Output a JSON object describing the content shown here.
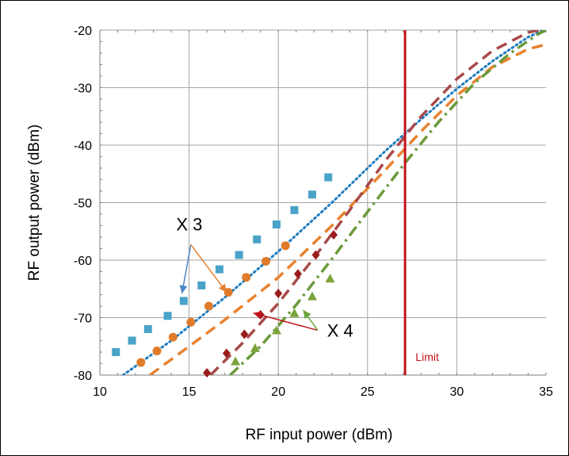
{
  "chart_data": {
    "type": "scatter",
    "title": "",
    "xlabel": "RF input power (dBm)",
    "ylabel": "RF output power (dBm)",
    "xlim": [
      10,
      35
    ],
    "ylim": [
      -80,
      -20
    ],
    "xticks": [
      "10",
      "15",
      "20",
      "25",
      "30",
      "35"
    ],
    "yticks": [
      "-20",
      "-30",
      "-40",
      "-50",
      "-60",
      "-70",
      "-80"
    ],
    "grid": true,
    "legend": "none",
    "series": [
      {
        "color": "#4aa3c8",
        "marker": "square",
        "points": [
          [
            10.9,
            -76
          ],
          [
            11.8,
            -74
          ],
          [
            12.7,
            -72
          ],
          [
            13.8,
            -69.7
          ],
          [
            14.7,
            -67.1
          ],
          [
            15.7,
            -64.4
          ],
          [
            16.7,
            -61.6
          ],
          [
            17.8,
            -59.1
          ],
          [
            18.8,
            -56.4
          ],
          [
            19.9,
            -53.8
          ],
          [
            20.9,
            -51.3
          ],
          [
            21.9,
            -48.6
          ],
          [
            22.8,
            -45.6
          ]
        ]
      },
      {
        "color": "#e07b2a",
        "marker": "circle",
        "points": [
          [
            12.3,
            -77.8
          ],
          [
            13.2,
            -75.8
          ],
          [
            14.1,
            -73.4
          ],
          [
            15.1,
            -70.8
          ],
          [
            16.1,
            -68
          ],
          [
            17.2,
            -65.6
          ],
          [
            18.2,
            -63
          ],
          [
            19.3,
            -60.2
          ],
          [
            20.4,
            -57.5
          ]
        ]
      },
      {
        "color": "#9b1c1c",
        "marker": "diamond",
        "points": [
          [
            16,
            -79.6
          ],
          [
            17.1,
            -76.2
          ],
          [
            18.1,
            -72.9
          ],
          [
            19,
            -69.5
          ],
          [
            20,
            -65.8
          ],
          [
            21.1,
            -62.4
          ],
          [
            22.1,
            -59.1
          ],
          [
            23.1,
            -55.6
          ]
        ]
      },
      {
        "color": "#7ba33a",
        "marker": "triangle",
        "points": [
          [
            17.6,
            -77.6
          ],
          [
            18.7,
            -75.3
          ],
          [
            19.9,
            -72.2
          ],
          [
            20.9,
            -69.2
          ],
          [
            21.9,
            -66.3
          ],
          [
            22.9,
            -63.2
          ]
        ]
      }
    ],
    "curves": [
      {
        "color": "#1f7bbf",
        "style": "dotted",
        "points": [
          [
            11.3,
            -80
          ],
          [
            14,
            -74
          ],
          [
            17,
            -66.5
          ],
          [
            20,
            -58.5
          ],
          [
            23,
            -50
          ],
          [
            26,
            -41
          ],
          [
            28,
            -35.5
          ],
          [
            30,
            -30.2
          ],
          [
            32,
            -25.4
          ],
          [
            34,
            -21.2
          ],
          [
            34.9,
            -20
          ]
        ]
      },
      {
        "color": "#e8822f",
        "style": "dashed",
        "points": [
          [
            12.8,
            -80
          ],
          [
            15,
            -75
          ],
          [
            17,
            -70.4
          ],
          [
            20,
            -63
          ],
          [
            23,
            -54
          ],
          [
            26,
            -44.3
          ],
          [
            28,
            -37.6
          ],
          [
            30,
            -31.4
          ],
          [
            32,
            -26.4
          ],
          [
            34,
            -23.3
          ],
          [
            35,
            -22.5
          ]
        ]
      },
      {
        "color": "#a84a4a",
        "style": "dashed",
        "points": [
          [
            16.2,
            -80
          ],
          [
            18,
            -74.4
          ],
          [
            20,
            -67.5
          ],
          [
            22,
            -59.6
          ],
          [
            24,
            -51.3
          ],
          [
            26,
            -42.7
          ],
          [
            28,
            -35
          ],
          [
            30,
            -28.5
          ],
          [
            32,
            -23.6
          ],
          [
            34,
            -20.4
          ],
          [
            34.6,
            -20
          ]
        ]
      },
      {
        "color": "#6a9a3a",
        "style": "dashdot",
        "points": [
          [
            17.3,
            -80
          ],
          [
            19,
            -75
          ],
          [
            21,
            -67.8
          ],
          [
            23,
            -59.8
          ],
          [
            25,
            -51.6
          ],
          [
            27,
            -43.5
          ],
          [
            29,
            -35.9
          ],
          [
            31,
            -29.2
          ],
          [
            33,
            -24
          ],
          [
            34.6,
            -20.6
          ],
          [
            35,
            -20
          ]
        ]
      }
    ],
    "limit": {
      "x": 27.1,
      "color": "#c0141b",
      "label": "Limit"
    },
    "annotations": [
      {
        "text": "X 3",
        "anchor": [
          15.1,
          -57.3
        ],
        "color_a": "#4a86c8",
        "color_b": "#e8822f",
        "arrows": [
          {
            "to": [
              14.6,
              -65.8
            ],
            "color": "#4a86c8"
          },
          {
            "to": [
              17.1,
              -65.6
            ],
            "color": "#e8822f"
          }
        ]
      },
      {
        "text": "X 4",
        "anchor": [
          22.2,
          -72.2
        ],
        "arrows": [
          {
            "to": [
              18.6,
              -69.2
            ],
            "color": "#c0141b"
          },
          {
            "to": [
              21.4,
              -68.7
            ],
            "color": "#6aa33a"
          }
        ]
      }
    ]
  }
}
